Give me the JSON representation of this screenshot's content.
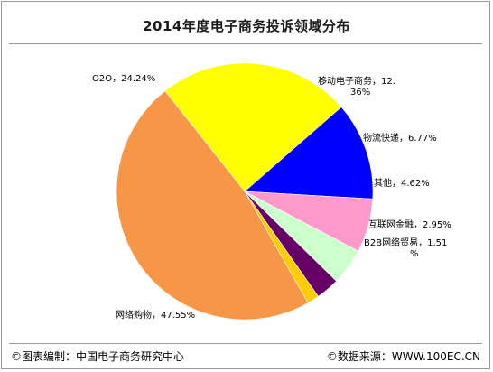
{
  "chart_data": {
    "type": "pie",
    "title": "2014年度电子商务投诉领域分布",
    "slices": [
      {
        "label": "O2O，24.24%",
        "value": 24.24,
        "color": "#ffff00"
      },
      {
        "label": "移动电子商务，12.36%",
        "label_lines": [
          "移动电子商务，12.",
          "36%"
        ],
        "value": 12.36,
        "color": "#0000ff"
      },
      {
        "label": "物流快递，6.77%",
        "value": 6.77,
        "color": "#ff99cc"
      },
      {
        "label": "其他，4.62%",
        "value": 4.62,
        "color": "#ccffcc"
      },
      {
        "label": "互联网金融，2.95%",
        "value": 2.95,
        "color": "#660066"
      },
      {
        "label": "B2B网络贸易，1.51%",
        "label_lines": [
          "B2B网络贸易，1.51",
          "%"
        ],
        "value": 1.51,
        "color": "#ffcc00"
      },
      {
        "label": "网络购物，47.55%",
        "value": 47.55,
        "color": "#f79646"
      }
    ]
  },
  "footer": {
    "left": "©图表编制：中国电子商务研究中心",
    "right": "©数据来源：WWW.100EC.CN"
  }
}
